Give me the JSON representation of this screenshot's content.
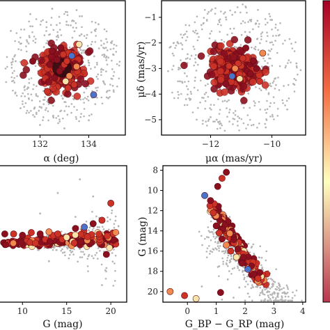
{
  "colors": {
    "field": "#b4b4b4",
    "member_dark": "#8a0f1f",
    "member_mid": "#cc3326",
    "member_warm": "#f08a4f",
    "member_pale": "#f8e3a8",
    "member_blue": "#4a74c9",
    "colorbar_top": "#a50026",
    "colorbar_mid": "#ffffbf",
    "colorbar_bottom": "#b8364f"
  },
  "chart_data": [
    {
      "type": "scatter",
      "panel": "sky_position",
      "xlabel": "α (deg)",
      "ylabel": "",
      "xlim": [
        130.3,
        135.5
      ],
      "ylim": [
        -1,
        1
      ],
      "xticks": [
        "132",
        "134"
      ],
      "yticks": [],
      "series": [
        {
          "role": "field",
          "x": [
            130.8,
            131.2,
            131.6,
            132.0,
            132.5,
            133.0,
            133.5,
            134.0,
            134.4,
            134.8,
            135.0,
            131.0,
            134.6,
            132.3,
            133.7
          ],
          "y": [
            0.55,
            -0.6,
            0.8,
            -0.85,
            0.88,
            -0.9,
            0.86,
            -0.78,
            0.65,
            -0.45,
            0.2,
            0.1,
            -0.2,
            -0.5,
            0.5
          ]
        },
        {
          "role": "members",
          "x": [
            132.9,
            133.0,
            132.8,
            133.1,
            132.7,
            133.2,
            132.95,
            133.05,
            132.6,
            133.3,
            132.5,
            133.4,
            132.85,
            133.15,
            132.4,
            133.5,
            132.3,
            133.6,
            131.7,
            134.2
          ],
          "y": [
            0.0,
            0.05,
            -0.05,
            0.1,
            0.12,
            -0.12,
            0.2,
            -0.2,
            -0.15,
            0.18,
            0.25,
            -0.25,
            0.3,
            -0.3,
            0.05,
            0.02,
            -0.35,
            0.35,
            0.1,
            -0.4
          ]
        }
      ]
    },
    {
      "type": "scatter",
      "panel": "proper_motion",
      "xlabel": "μα (mas/yr)",
      "ylabel": "μδ (mas/yr)",
      "xlim": [
        -13.6,
        -8.9
      ],
      "ylim": [
        -5.6,
        -0.35
      ],
      "xticks": [
        "−12",
        "−10"
      ],
      "yticks": [
        "−1",
        "−2",
        "−3",
        "−4",
        "−5"
      ],
      "series": [
        {
          "role": "field",
          "x": [
            -13.2,
            -12.8,
            -12.3,
            -11.8,
            -11.2,
            -10.6,
            -10.0,
            -9.5,
            -9.2,
            -13.0,
            -9.3,
            -12.0,
            -10.2,
            -11.5
          ],
          "y": [
            -2.0,
            -4.2,
            -1.3,
            -5.0,
            -0.8,
            -5.2,
            -1.1,
            -4.6,
            -2.8,
            -3.5,
            -3.6,
            -4.9,
            -5.3,
            -1.0
          ]
        },
        {
          "role": "members",
          "x": [
            -10.9,
            -11.0,
            -10.8,
            -11.1,
            -10.7,
            -11.2,
            -10.95,
            -11.05,
            -10.6,
            -11.3,
            -10.5,
            -11.4,
            -10.85,
            -10.4,
            -11.5,
            -10.3
          ],
          "y": [
            -3.0,
            -2.9,
            -3.1,
            -2.8,
            -3.2,
            -3.0,
            -2.6,
            -3.4,
            -2.7,
            -3.3,
            -3.0,
            -2.9,
            -2.2,
            -3.5,
            -3.6,
            -2.4
          ]
        }
      ]
    },
    {
      "type": "scatter",
      "panel": "magnitude_dependence",
      "xlabel": "G (mag)",
      "ylabel": "",
      "xlim": [
        7.3,
        21.8
      ],
      "ylim": [
        -1,
        1
      ],
      "xticks": [
        "10",
        "15",
        "20"
      ],
      "yticks": [],
      "series": [
        {
          "role": "field",
          "x": [
            9,
            10,
            11,
            12,
            13,
            14,
            15,
            16,
            17,
            18,
            19,
            20,
            16.5,
            19.5,
            18.5
          ],
          "y": [
            0.02,
            -0.02,
            0.05,
            0.3,
            -0.4,
            0.6,
            -0.1,
            0.25,
            -0.3,
            0.55,
            -0.75,
            0.4,
            0.8,
            -0.5,
            0.1
          ]
        },
        {
          "role": "members",
          "x": [
            8,
            9,
            10,
            11,
            12,
            13,
            14,
            15,
            16,
            17,
            18,
            19,
            19.5,
            20
          ],
          "y": [
            0.0,
            0.0,
            -0.02,
            0.02,
            0.0,
            0.03,
            0.0,
            -0.05,
            0.08,
            0.1,
            0.15,
            0.2,
            -0.3,
            0.45
          ]
        }
      ]
    },
    {
      "type": "scatter",
      "panel": "color_magnitude",
      "xlabel": "G_BP − G_RP (mag)",
      "ylabel": "G (mag)",
      "xlim": [
        -0.85,
        4.1
      ],
      "ylim": [
        21.05,
        7.55
      ],
      "xticks": [
        "0",
        "1",
        "2",
        "3",
        "4"
      ],
      "yticks": [
        "8",
        "10",
        "12",
        "14",
        "16",
        "18",
        "20"
      ],
      "series": [
        {
          "role": "field",
          "x": [
            0.8,
            1.1,
            1.4,
            1.8,
            2.1,
            2.4,
            2.8,
            3.1,
            0.5,
            1.2,
            1.6,
            2.0,
            2.6,
            3.4
          ],
          "y": [
            16.0,
            17.5,
            18.8,
            19.6,
            20.2,
            19.0,
            20.4,
            19.8,
            19.5,
            20.8,
            20.6,
            20.9,
            20.1,
            20.5
          ]
        },
        {
          "role": "members",
          "x": [
            0.8,
            0.9,
            1.0,
            1.1,
            1.2,
            1.35,
            1.5,
            1.7,
            1.9,
            2.1,
            2.3,
            2.45,
            1.05,
            1.2,
            1.35,
            -0.6,
            -0.1,
            0.3,
            1.15,
            0.6
          ],
          "y": [
            11.0,
            12.2,
            13.5,
            14.2,
            14.8,
            15.4,
            16.0,
            16.6,
            17.2,
            17.8,
            18.3,
            18.7,
            9.6,
            8.8,
            8.2,
            20.0,
            20.4,
            20.7,
            20.1,
            10.5
          ]
        }
      ]
    }
  ]
}
